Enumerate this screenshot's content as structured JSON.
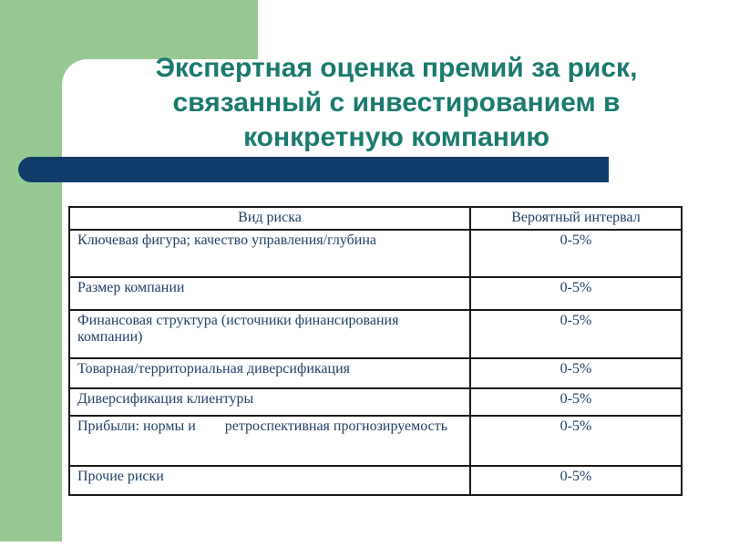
{
  "slide": {
    "title_lines": [
      "Экспертная оценка премий за риск,",
      "связанный с инвестированием в",
      "конкретную компанию"
    ]
  },
  "table": {
    "headers": [
      "Вид риска",
      "Вероятный интервал"
    ],
    "rows": [
      {
        "risk": "Ключевая фигура; качество управления/глубина",
        "interval": "0-5%"
      },
      {
        "risk": "Размер компании",
        "interval": "0-5%"
      },
      {
        "risk": "Финансовая структура (источники финансирования компании)",
        "interval": "0-5%"
      },
      {
        "risk": "Товарная/территориальная диверсификация",
        "interval": "0-5%"
      },
      {
        "risk": "Диверсификация клиентуры",
        "interval": "0-5%"
      },
      {
        "risk": "Прибыли: нормы и        ретроспективная прогнозируемость",
        "interval": "0-5%"
      },
      {
        "risk": "Прочие риски",
        "interval": "0-5%"
      }
    ]
  },
  "colors": {
    "accent_green": "#97C993",
    "accent_navy": "#113C69",
    "title_teal": "#1A7A6E",
    "table_text": "#1F4064",
    "table_border": "#1A1A1A"
  }
}
